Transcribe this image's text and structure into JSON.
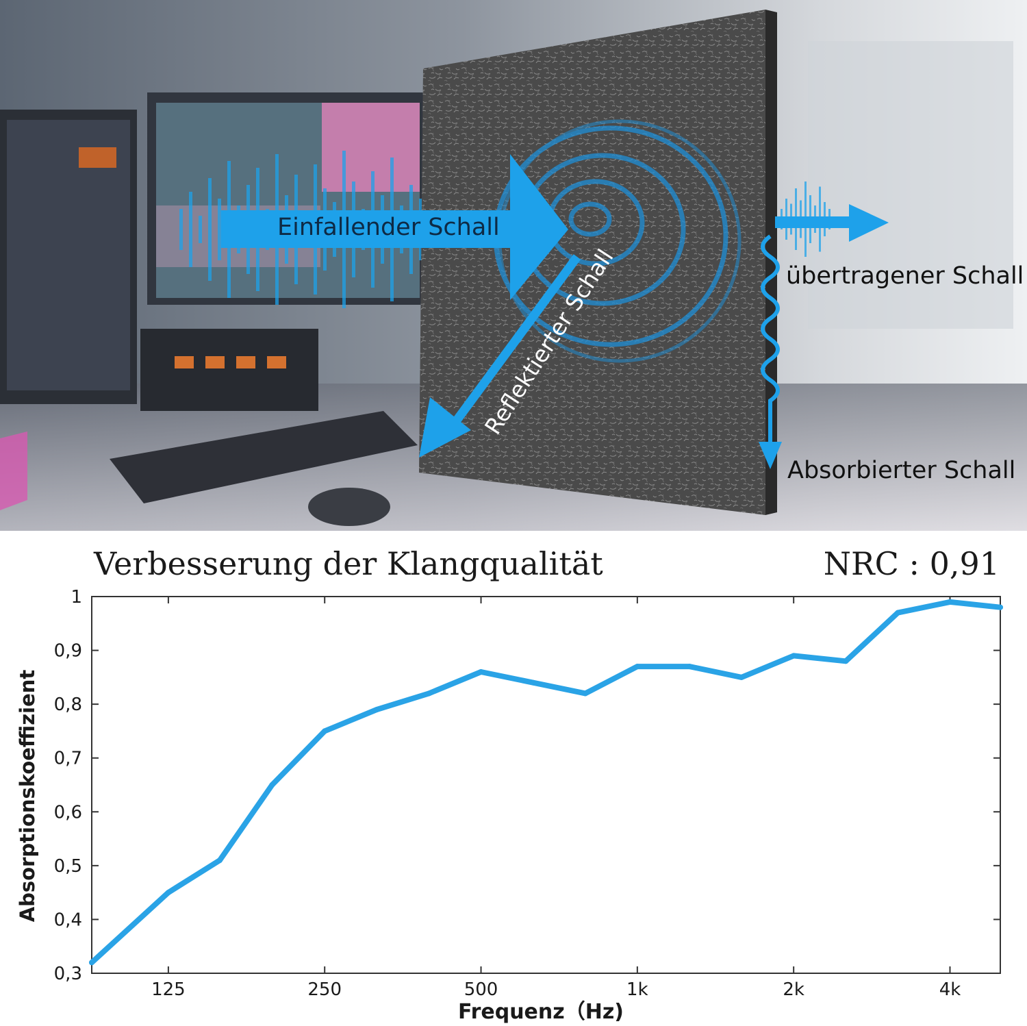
{
  "scene": {
    "incident_label": "Einfallender Schall",
    "reflected_label": "Reflektierter Schall",
    "transmitted_label": "übertragener Schall",
    "absorbed_label": "Absorbierter Schall",
    "arrow_color": "#1ea1ea",
    "panel_color": "#4a4a4a"
  },
  "chart_header": {
    "title": "Verbesserung der Klangqualität",
    "nrc": "NRC : 0,91"
  },
  "chart_data": {
    "type": "line",
    "title": "Verbesserung der Klangqualität",
    "xlabel": "Frequenz（Hz)",
    "ylabel": "Absorptionskoeffizient",
    "x_scale": "log2",
    "x_ticks": [
      125,
      250,
      500,
      1000,
      2000,
      4000
    ],
    "x_tick_labels": [
      "125",
      "250",
      "500",
      "1k",
      "2k",
      "4k"
    ],
    "xlim": [
      89,
      5000
    ],
    "ylim": [
      0.3,
      1.0
    ],
    "y_ticks": [
      0.3,
      0.4,
      0.5,
      0.6,
      0.7,
      0.8,
      0.9,
      1.0
    ],
    "y_tick_labels": [
      "0,3",
      "0,4",
      "0,5",
      "0,6",
      "0,7",
      "0,8",
      "0,9",
      "1"
    ],
    "line_color": "#2aa3e6",
    "grid": false,
    "series": [
      {
        "x": [
          89,
          125,
          157,
          198,
          250,
          315,
          397,
          500,
          630,
          794,
          1000,
          1260,
          1587,
          2000,
          2520,
          3175,
          4000,
          5000
        ],
        "y": [
          0.32,
          0.45,
          0.51,
          0.65,
          0.75,
          0.79,
          0.82,
          0.86,
          0.84,
          0.82,
          0.87,
          0.87,
          0.85,
          0.89,
          0.88,
          0.97,
          0.99,
          0.98
        ]
      }
    ]
  }
}
